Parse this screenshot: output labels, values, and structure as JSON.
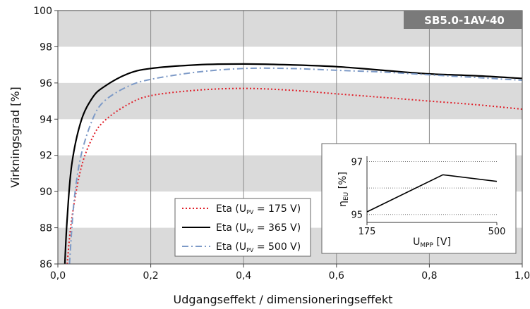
{
  "chart_data": {
    "type": "line",
    "model_badge": "SB5.0-1AV-40",
    "xlabel": "Udgangseffekt / dimensioneringseffekt",
    "ylabel": "Virkningsgrad [%]",
    "xlim": [
      0,
      1.0
    ],
    "ylim": [
      86,
      100
    ],
    "x_ticks": [
      "0,0",
      "0,2",
      "0,4",
      "0,6",
      "0,8",
      "1,0"
    ],
    "y_ticks": [
      "86",
      "88",
      "90",
      "92",
      "94",
      "96",
      "98",
      "100"
    ],
    "grid": "vertical lines at x ticks, alternating gray horizontal bands",
    "legend_position": "bottom-center",
    "series": [
      {
        "name": "Eta (U_PV = 175 V)",
        "legend_main": "Eta (U",
        "legend_sub": "PV",
        "legend_tail": " = 175 V)",
        "color": "#e0202a",
        "style": "dotted",
        "x": [
          0.02,
          0.03,
          0.05,
          0.075,
          0.1,
          0.15,
          0.2,
          0.3,
          0.4,
          0.5,
          0.6,
          0.7,
          0.8,
          0.9,
          1.0
        ],
        "y": [
          86,
          88.5,
          91.3,
          93.0,
          93.9,
          94.8,
          95.3,
          95.6,
          95.7,
          95.6,
          95.4,
          95.2,
          95.0,
          94.8,
          94.55
        ]
      },
      {
        "name": "Eta (U_PV = 365 V)",
        "legend_main": "Eta (U",
        "legend_sub": "PV",
        "legend_tail": " = 365 V)",
        "color": "#000000",
        "style": "solid",
        "x": [
          0.015,
          0.02,
          0.03,
          0.05,
          0.075,
          0.1,
          0.15,
          0.2,
          0.3,
          0.4,
          0.5,
          0.6,
          0.7,
          0.8,
          0.9,
          1.0
        ],
        "y": [
          86,
          88.5,
          91.5,
          93.9,
          95.2,
          95.8,
          96.5,
          96.8,
          97.0,
          97.05,
          97.0,
          96.9,
          96.7,
          96.5,
          96.4,
          96.25
        ]
      },
      {
        "name": "Eta (U_PV = 500 V)",
        "legend_main": "Eta (U",
        "legend_sub": "PV",
        "legend_tail": " = 500 V)",
        "color": "#7d9ac7",
        "style": "dashdot",
        "x": [
          0.025,
          0.035,
          0.05,
          0.075,
          0.1,
          0.15,
          0.2,
          0.3,
          0.4,
          0.5,
          0.6,
          0.7,
          0.8,
          0.9,
          1.0
        ],
        "y": [
          86,
          89.5,
          92.0,
          94.0,
          95.0,
          95.8,
          96.2,
          96.6,
          96.8,
          96.8,
          96.7,
          96.6,
          96.45,
          96.3,
          96.15
        ]
      }
    ],
    "inset": {
      "type": "line",
      "xlabel_main": "U",
      "xlabel_sub": "MPP",
      "xlabel_tail": " [V]",
      "ylabel_main": "η",
      "ylabel_sub": "EU",
      "ylabel_tail": " [%]",
      "x_ticks": [
        "175",
        "500"
      ],
      "y_ticks": [
        "95",
        "97"
      ],
      "xlim": [
        175,
        500
      ],
      "ylim": [
        94.7,
        97.2
      ],
      "x": [
        175,
        365,
        500
      ],
      "y": [
        95.1,
        96.5,
        96.25
      ],
      "color": "#000000"
    }
  }
}
